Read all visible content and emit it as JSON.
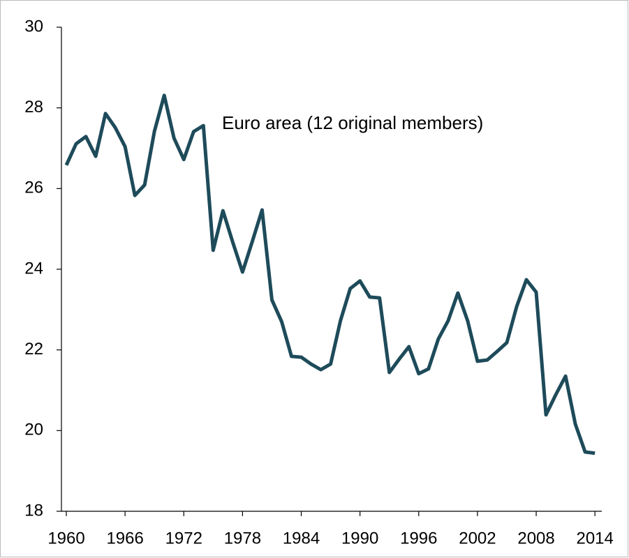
{
  "chart_data": {
    "type": "line",
    "annotation": "Euro area (12 original members)",
    "x": [
      1960,
      1961,
      1962,
      1963,
      1964,
      1965,
      1966,
      1967,
      1968,
      1969,
      1970,
      1971,
      1972,
      1973,
      1974,
      1975,
      1976,
      1977,
      1978,
      1979,
      1980,
      1981,
      1982,
      1983,
      1984,
      1985,
      1986,
      1987,
      1988,
      1989,
      1990,
      1991,
      1992,
      1993,
      1994,
      1995,
      1996,
      1997,
      1998,
      1999,
      2000,
      2001,
      2002,
      2003,
      2004,
      2005,
      2006,
      2007,
      2008,
      2009,
      2010,
      2011,
      2012,
      2013,
      2014
    ],
    "series": [
      {
        "name": "Euro area (12 original members)",
        "color": "#1e4b5a",
        "values": [
          26.58,
          27.11,
          27.29,
          26.8,
          27.86,
          27.51,
          27.04,
          25.83,
          26.09,
          27.42,
          28.31,
          27.25,
          26.72,
          27.41,
          27.56,
          24.47,
          25.45,
          24.67,
          23.93,
          24.69,
          25.47,
          23.24,
          22.7,
          21.84,
          21.82,
          21.65,
          21.51,
          21.65,
          22.72,
          23.52,
          23.71,
          23.31,
          23.29,
          21.44,
          21.77,
          22.08,
          21.41,
          21.53,
          22.27,
          22.72,
          23.41,
          22.72,
          21.72,
          21.75,
          21.96,
          22.18,
          23.07,
          23.74,
          23.43,
          20.39,
          20.89,
          21.35,
          20.16,
          19.47,
          19.44
        ]
      }
    ],
    "xlim": [
      1959.5,
      2014.7
    ],
    "xticks": [
      1960,
      1966,
      1972,
      1978,
      1984,
      1990,
      1996,
      2002,
      2008,
      2014
    ],
    "ylim": [
      18,
      30
    ],
    "yticks": [
      18,
      20,
      22,
      24,
      26,
      28,
      30
    ]
  }
}
